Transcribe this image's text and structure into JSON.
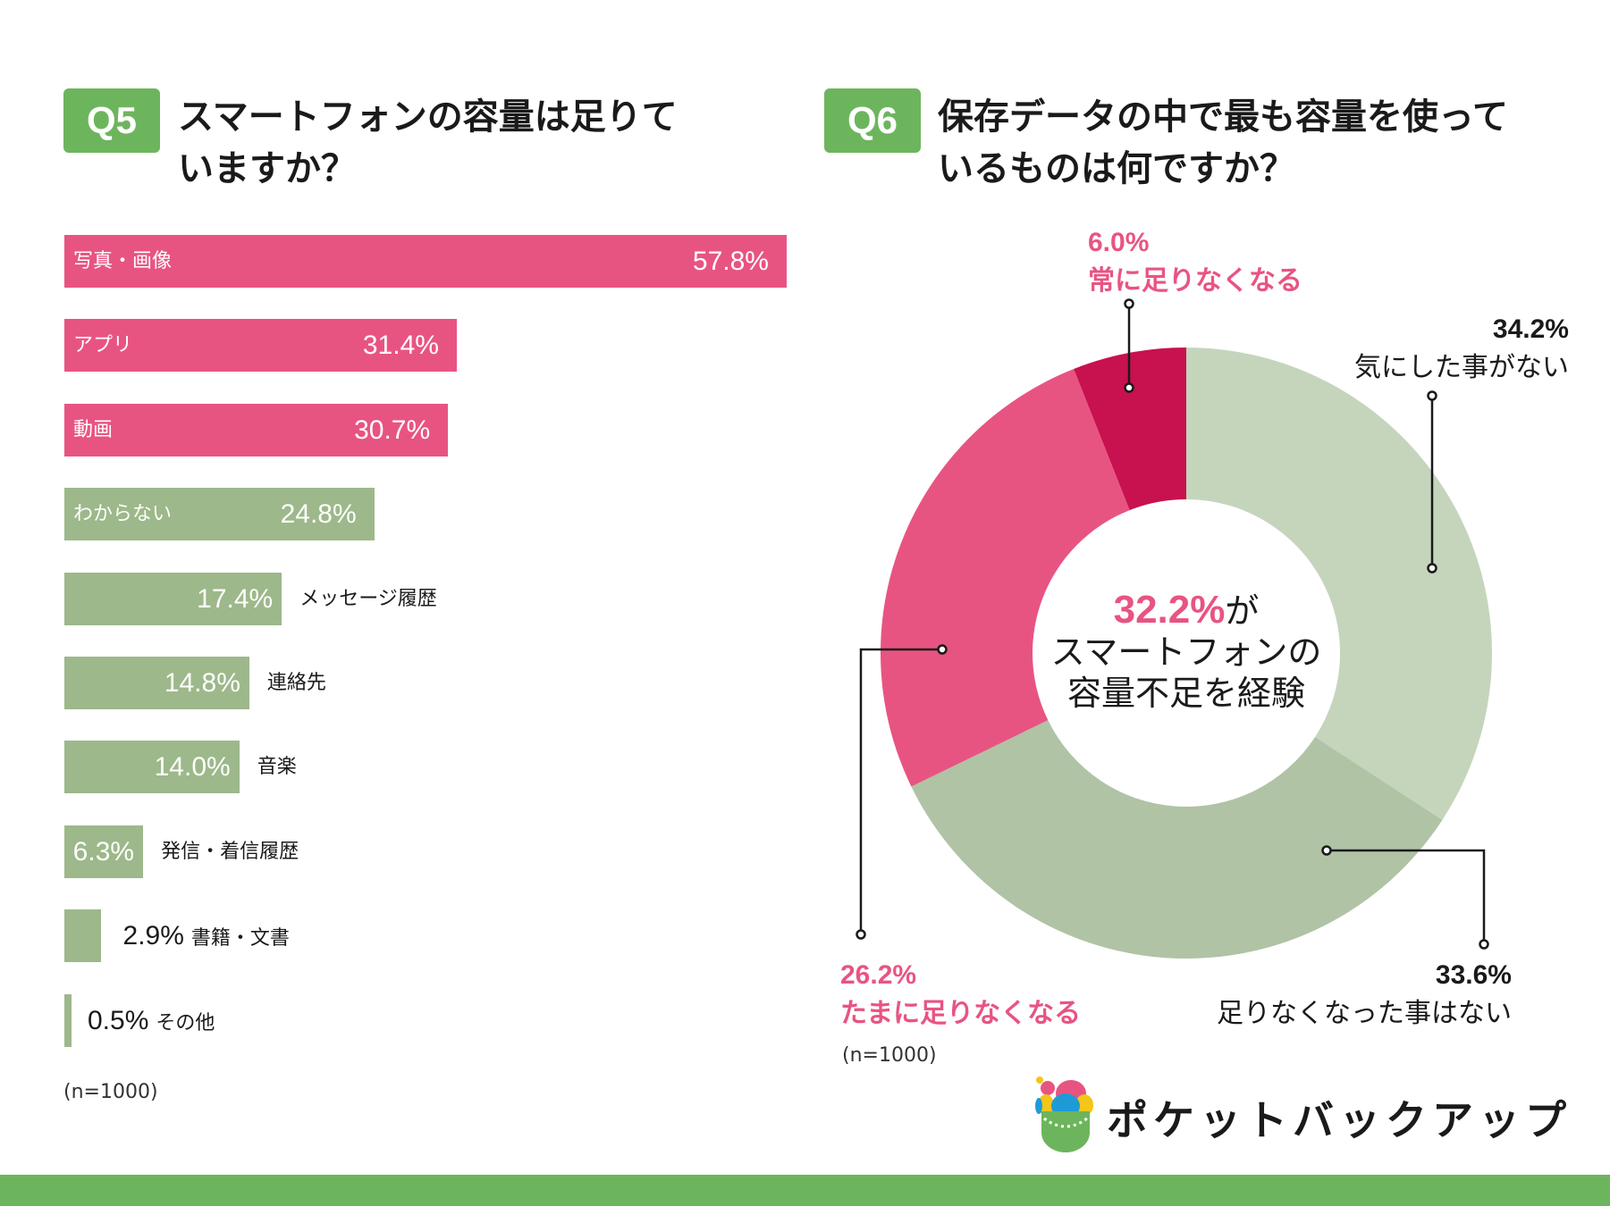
{
  "q5": {
    "badge": "Q5",
    "title_line1": "スマートフォンの容量は足りて",
    "title_line2": "いますか？",
    "note": "(n=1000)"
  },
  "q6": {
    "badge": "Q6",
    "title_line1": "保存データの中で最も容量を使って",
    "title_line2": "いるものは何ですか？",
    "note": "(n=1000)"
  },
  "chart_data": [
    {
      "type": "bar",
      "orientation": "horizontal",
      "categories": [
        "写真・画像",
        "アプリ",
        "動画",
        "わからない",
        "メッセージ履歴",
        "連絡先",
        "音楽",
        "発信・着信履歴",
        "書籍・文書",
        "その他"
      ],
      "values": [
        57.8,
        31.4,
        30.7,
        24.8,
        17.4,
        14.8,
        14.0,
        6.3,
        2.9,
        0.5
      ],
      "value_labels": [
        "57.8%",
        "31.4%",
        "30.7%",
        "24.8%",
        "17.4%",
        "14.8%",
        "14.0%",
        "6.3%",
        "2.9%",
        "0.5%"
      ],
      "colors": [
        "#E85482",
        "#E85482",
        "#E85482",
        "#9DB88A",
        "#9DB88A",
        "#9DB88A",
        "#9DB88A",
        "#9DB88A",
        "#9DB88A",
        "#9DB88A"
      ],
      "xlim": [
        0,
        57.8
      ]
    },
    {
      "type": "pie",
      "variant": "donut",
      "slices": [
        {
          "label": "気にした事がない",
          "value": 34.2,
          "value_label": "34.2%",
          "color": "#C5D5BC"
        },
        {
          "label": "足りなくなった事はない",
          "value": 33.6,
          "value_label": "33.6%",
          "color": "#B0C3A5"
        },
        {
          "label": "たまに足りなくなる",
          "value": 26.2,
          "value_label": "26.2%",
          "color": "#E85482"
        },
        {
          "label": "常に足りなくなる",
          "value": 6.0,
          "value_label": "6.0%",
          "color": "#C8114F"
        }
      ],
      "center_text": {
        "highlight": "32.2%",
        "suffix": "が",
        "line2": "スマートフォンの",
        "line3": "容量不足を経験"
      }
    }
  ],
  "logo": {
    "text": "ポケットバックアップ"
  },
  "colors": {
    "green": "#6DB55D",
    "pink": "#E85482",
    "dark_pink": "#C8114F"
  }
}
